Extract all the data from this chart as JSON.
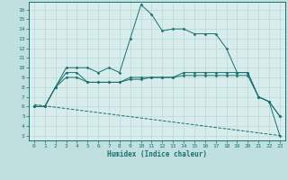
{
  "xlabel": "Humidex (Indice chaleur)",
  "xlim": [
    -0.5,
    23.5
  ],
  "ylim": [
    2.5,
    16.8
  ],
  "yticks": [
    3,
    4,
    5,
    6,
    7,
    8,
    9,
    10,
    11,
    12,
    13,
    14,
    15,
    16
  ],
  "xticks": [
    0,
    1,
    2,
    3,
    4,
    5,
    6,
    7,
    8,
    9,
    10,
    11,
    12,
    13,
    14,
    15,
    16,
    17,
    18,
    19,
    20,
    21,
    22,
    23
  ],
  "bg_color": "#c0e0e0",
  "plot_bg_color": "#d8ecec",
  "grid_color": "#b8d8d8",
  "line_color": "#1a7070",
  "lines": [
    {
      "style": "solid_marker",
      "x": [
        0,
        1,
        2,
        3,
        4,
        5,
        6,
        7,
        8,
        9,
        10,
        11,
        12,
        13,
        14,
        15,
        16,
        17,
        18,
        19,
        20,
        21,
        22,
        23
      ],
      "y": [
        6.0,
        6.0,
        8.0,
        10.0,
        10.0,
        10.0,
        9.5,
        10.0,
        9.5,
        13.0,
        16.5,
        15.5,
        13.8,
        14.0,
        14.0,
        13.5,
        13.5,
        13.5,
        12.0,
        9.5,
        9.5,
        7.0,
        6.5,
        3.0
      ]
    },
    {
      "style": "solid_marker",
      "x": [
        0,
        1,
        2,
        3,
        4,
        5,
        6,
        7,
        8,
        9,
        10,
        11,
        12,
        13,
        14,
        15,
        16,
        17,
        18,
        19,
        20,
        21,
        22,
        23
      ],
      "y": [
        6.0,
        6.0,
        8.0,
        9.5,
        9.5,
        8.5,
        8.5,
        8.5,
        8.5,
        9.0,
        9.0,
        9.0,
        9.0,
        9.0,
        9.5,
        9.5,
        9.5,
        9.5,
        9.5,
        9.5,
        9.5,
        7.0,
        6.5,
        5.0
      ]
    },
    {
      "style": "solid_marker",
      "x": [
        0,
        1,
        2,
        3,
        4,
        5,
        6,
        7,
        8,
        9,
        10,
        11,
        12,
        13,
        14,
        15,
        16,
        17,
        18,
        19,
        20,
        21,
        22,
        23
      ],
      "y": [
        6.0,
        6.0,
        8.0,
        9.0,
        9.0,
        8.5,
        8.5,
        8.5,
        8.5,
        8.8,
        8.8,
        9.0,
        9.0,
        9.0,
        9.2,
        9.2,
        9.2,
        9.2,
        9.2,
        9.2,
        9.2,
        7.0,
        6.5,
        5.0
      ]
    },
    {
      "style": "dashed",
      "x": [
        0,
        23
      ],
      "y": [
        6.2,
        3.0
      ]
    }
  ]
}
